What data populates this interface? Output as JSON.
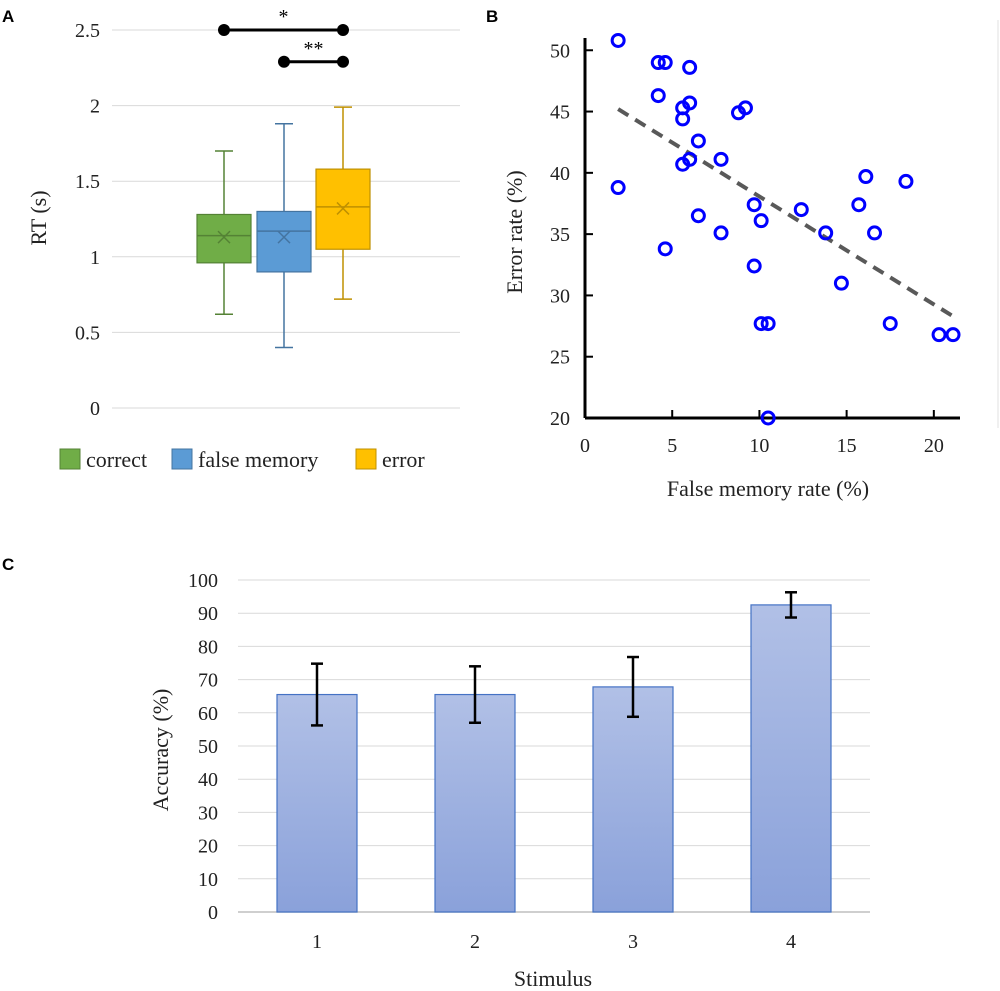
{
  "panel_labels": {
    "a": "A",
    "b": "B",
    "c": "C"
  },
  "colors": {
    "correct": "#70AD47",
    "false_memory": "#5B9BD5",
    "error": "#FFC000",
    "scatter_marker": "#0000FF",
    "trendline": "#595959",
    "bar_fill": "#8FA5DA",
    "bar_stroke": "#4472C4",
    "grid": "#D9D9D9"
  },
  "chart_data": [
    {
      "panel": "A",
      "type": "box",
      "ylabel": "RT (s)",
      "ylim": [
        0,
        2.5
      ],
      "yticks": [
        0,
        0.5,
        1,
        1.5,
        2,
        2.5
      ],
      "ytick_labels": [
        "0",
        "0.5",
        "1",
        "1.5",
        "2",
        "2.5"
      ],
      "series": [
        {
          "name": "correct",
          "min": 0.62,
          "q1": 0.96,
          "median": 1.14,
          "q3": 1.28,
          "max": 1.7,
          "mean": 1.13
        },
        {
          "name": "false memory",
          "min": 0.4,
          "q1": 0.9,
          "median": 1.17,
          "q3": 1.3,
          "max": 1.88,
          "mean": 1.13
        },
        {
          "name": "error",
          "min": 0.72,
          "q1": 1.05,
          "median": 1.33,
          "q3": 1.58,
          "max": 1.99,
          "mean": 1.32
        }
      ],
      "significance": [
        {
          "from": "correct",
          "to": "error",
          "y": 2.5,
          "label": "*"
        },
        {
          "from": "false memory",
          "to": "error",
          "y": 2.29,
          "label": "**"
        }
      ],
      "legend": [
        "correct",
        "false memory",
        "error"
      ]
    },
    {
      "panel": "B",
      "type": "scatter",
      "xlabel": "False memory rate (%)",
      "ylabel": "Error rate (%)",
      "xlim": [
        0,
        21.5
      ],
      "ylim": [
        20,
        51
      ],
      "xticks": [
        0,
        5,
        10,
        15,
        20
      ],
      "yticks": [
        20,
        25,
        30,
        35,
        40,
        45,
        50
      ],
      "xtick_labels": [
        "0",
        "5",
        "10",
        "15",
        "20"
      ],
      "ytick_labels": [
        "20",
        "25",
        "30",
        "35",
        "40",
        "45",
        "50"
      ],
      "points": [
        [
          1.9,
          50.8
        ],
        [
          4.2,
          49.0
        ],
        [
          4.6,
          49.0
        ],
        [
          6.0,
          48.6
        ],
        [
          4.2,
          46.3
        ],
        [
          6.0,
          45.7
        ],
        [
          5.6,
          45.3
        ],
        [
          5.6,
          44.4
        ],
        [
          8.8,
          44.9
        ],
        [
          9.2,
          45.3
        ],
        [
          6.5,
          42.6
        ],
        [
          6.0,
          41.1
        ],
        [
          5.6,
          40.7
        ],
        [
          7.8,
          41.1
        ],
        [
          1.9,
          38.8
        ],
        [
          9.7,
          37.4
        ],
        [
          10.1,
          36.1
        ],
        [
          6.5,
          36.5
        ],
        [
          4.6,
          33.8
        ],
        [
          7.8,
          35.1
        ],
        [
          12.4,
          37.0
        ],
        [
          13.8,
          35.1
        ],
        [
          15.7,
          37.4
        ],
        [
          16.1,
          39.7
        ],
        [
          18.4,
          39.3
        ],
        [
          16.6,
          35.1
        ],
        [
          9.7,
          32.4
        ],
        [
          14.7,
          31.0
        ],
        [
          10.1,
          27.7
        ],
        [
          10.5,
          27.7
        ],
        [
          17.5,
          27.7
        ],
        [
          20.3,
          26.8
        ],
        [
          21.1,
          26.8
        ],
        [
          10.5,
          20.0
        ]
      ],
      "trendline": {
        "x": [
          1.9,
          21.1
        ],
        "y": [
          45.2,
          28.3
        ]
      }
    },
    {
      "panel": "C",
      "type": "bar",
      "xlabel": "Stimulus",
      "ylabel": "Accuracy (%)",
      "ylim": [
        0,
        100
      ],
      "yticks": [
        0,
        10,
        20,
        30,
        40,
        50,
        60,
        70,
        80,
        90,
        100
      ],
      "ytick_labels": [
        "0",
        "10",
        "20",
        "30",
        "40",
        "50",
        "60",
        "70",
        "80",
        "90",
        "100"
      ],
      "categories": [
        "1",
        "2",
        "3",
        "4"
      ],
      "values": [
        65.5,
        65.5,
        67.8,
        92.5
      ],
      "errors": [
        9.3,
        8.5,
        9.0,
        3.8
      ]
    }
  ]
}
